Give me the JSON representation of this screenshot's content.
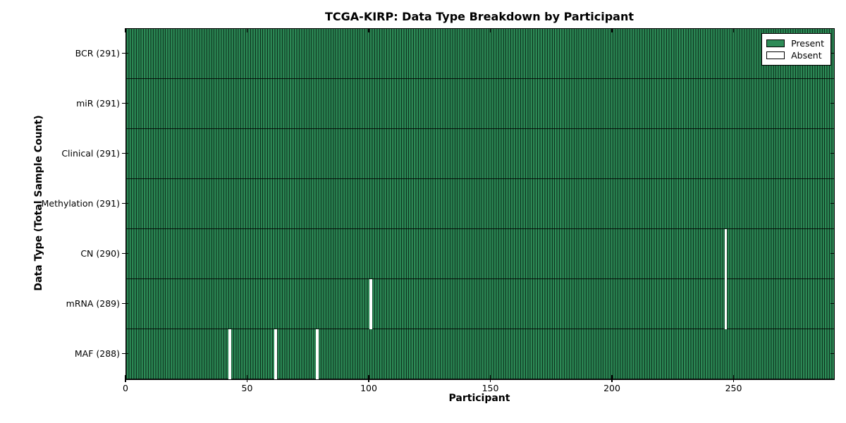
{
  "title": "TCGA-KIRP: Data Type Breakdown by Participant",
  "chart_data": {
    "type": "heatmap",
    "title": "TCGA-KIRP: Data Type Breakdown by Participant",
    "xlabel": "Participant",
    "ylabel": "Data Type (Total Sample Count)",
    "xlim": [
      0,
      291
    ],
    "n_participants": 291,
    "x_ticks": [
      0,
      50,
      100,
      150,
      200,
      250
    ],
    "grid": false,
    "rows": [
      {
        "label": "BCR (291)",
        "name": "BCR",
        "total": 291,
        "absent_participants": []
      },
      {
        "label": "miR (291)",
        "name": "miR",
        "total": 291,
        "absent_participants": []
      },
      {
        "label": "Clinical (291)",
        "name": "Clinical",
        "total": 291,
        "absent_participants": []
      },
      {
        "label": "Methylation (291)",
        "name": "Methylation",
        "total": 291,
        "absent_participants": []
      },
      {
        "label": "CN (290)",
        "name": "CN",
        "total": 290,
        "absent_participants": [
          246
        ]
      },
      {
        "label": "mRNA (289)",
        "name": "mRNA",
        "total": 289,
        "absent_participants": [
          100,
          246
        ]
      },
      {
        "label": "MAF (288)",
        "name": "MAF",
        "total": 288,
        "absent_participants": [
          42,
          61,
          78
        ]
      }
    ],
    "legend": {
      "position": "upper right",
      "entries": [
        {
          "label": "Present",
          "color": "#2e8b57"
        },
        {
          "label": "Absent",
          "color": "#ffffff"
        }
      ]
    },
    "colors": {
      "present": "#2e8b57",
      "absent": "#ffffff",
      "edge": "#000000"
    }
  }
}
